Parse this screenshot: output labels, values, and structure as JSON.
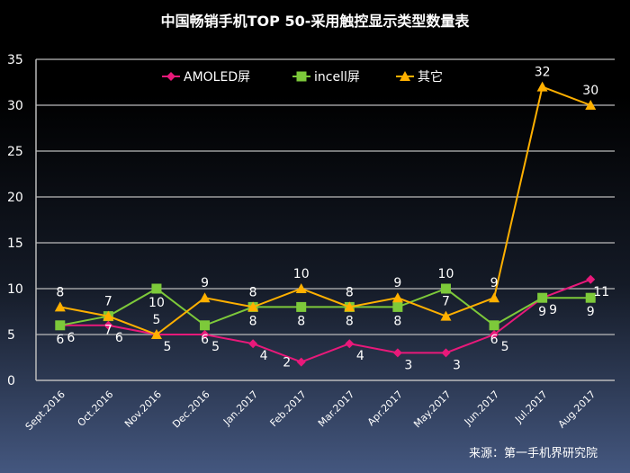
{
  "chart_data": {
    "type": "line",
    "title": "中国畅销手机TOP 50-采用触控显示类型数量表",
    "categories": [
      "Sept.2016",
      "Oct.2016",
      "Nov.2016",
      "Dec.2016",
      "Jan.2017",
      "Feb.2017",
      "Mar.2017",
      "Apr.2017",
      "May.2017",
      "Jun.2017",
      "Jul.2017",
      "Aug.2017"
    ],
    "ylim": [
      0,
      35
    ],
    "yticks": [
      0,
      5,
      10,
      15,
      20,
      25,
      30,
      35
    ],
    "grid": true,
    "legend": "top",
    "series": [
      {
        "name": "AMOLED屏",
        "color": "#e8197a",
        "marker": "diamond",
        "values": [
          6,
          6,
          5,
          5,
          4,
          2,
          4,
          3,
          3,
          5,
          9,
          11
        ]
      },
      {
        "name": "incell屏",
        "color": "#7dc93a",
        "marker": "square",
        "values": [
          6,
          7,
          10,
          6,
          8,
          8,
          8,
          8,
          10,
          6,
          9,
          9
        ]
      },
      {
        "name": "其它",
        "color": "#ffb000",
        "marker": "triangle",
        "values": [
          8,
          7,
          5,
          9,
          8,
          10,
          8,
          9,
          7,
          9,
          32,
          30
        ]
      }
    ]
  },
  "source": "来源：第一手机界研究院"
}
